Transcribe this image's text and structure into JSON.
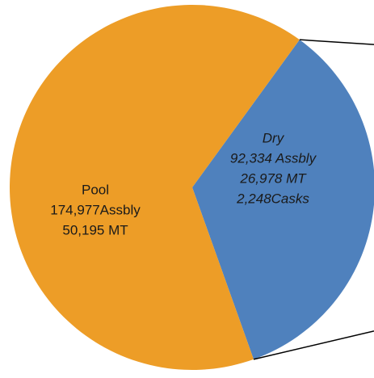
{
  "chart_data": {
    "type": "pie",
    "categories": [
      "Pool",
      "Dry"
    ],
    "values": [
      174977,
      92334
    ],
    "value_labels": [
      "174,977Assbly",
      "92,334 Assbly"
    ],
    "details": [
      [
        "50,195 MT"
      ],
      [
        "26,978 MT",
        "2,248Casks"
      ]
    ],
    "colors": [
      "#ed9d27",
      "#4f81bd"
    ]
  }
}
